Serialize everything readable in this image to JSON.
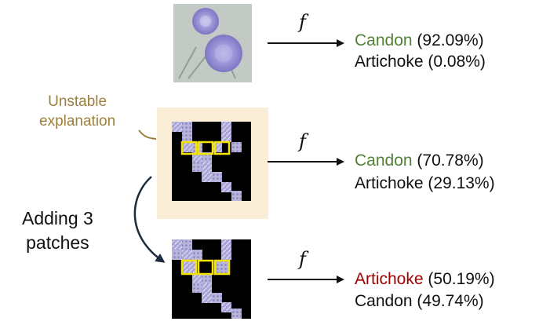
{
  "annotations": {
    "unstable_line1": "Unstable",
    "unstable_line2": "explanation",
    "adding_line1": "Adding 3",
    "adding_line2": "patches"
  },
  "function_symbol": "f",
  "rows": [
    {
      "image": "original",
      "predictions": [
        {
          "label": "Candon",
          "score": "(92.09%)",
          "color": "#538135"
        },
        {
          "label": "Artichoke",
          "score": "(0.08%)",
          "color": "#111111"
        }
      ]
    },
    {
      "image": "explanation",
      "predictions": [
        {
          "label": "Candon",
          "score": "(70.78%)",
          "color": "#538135"
        },
        {
          "label": "Artichoke",
          "score": "(29.13%)",
          "color": "#111111"
        }
      ]
    },
    {
      "image": "explanation-plus-3-patches",
      "predictions": [
        {
          "label": "Artichoke",
          "score": "(50.19%)",
          "color": "#a00000"
        },
        {
          "label": "Candon",
          "score": "(49.74%)",
          "color": "#111111"
        }
      ]
    }
  ],
  "colors": {
    "unstable_text": "#9c7f3c",
    "highlight_bg": "#faefd6",
    "patch_outline": "#f5e400",
    "curve_arrow": "#1c2b3a",
    "arrow": "#111111"
  }
}
